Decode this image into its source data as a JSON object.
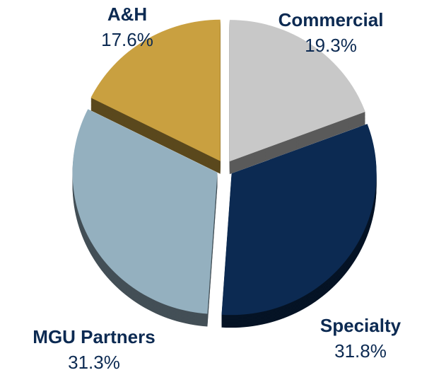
{
  "chart_data": {
    "type": "pie",
    "categories": [
      "Commercial",
      "Specialty",
      "MGU Partners",
      "A&H"
    ],
    "values": [
      19.3,
      31.8,
      31.3,
      17.6
    ],
    "value_labels": [
      "19.3%",
      "31.8%",
      "31.3%",
      "17.6%"
    ],
    "colors": [
      "#c8c8c8",
      "#0c2a52",
      "#94b0bf",
      "#c9a040"
    ]
  }
}
